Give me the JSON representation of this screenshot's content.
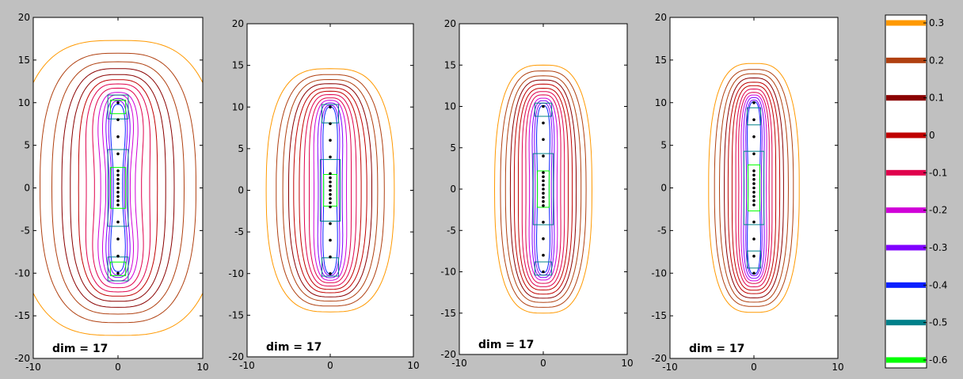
{
  "window": {
    "background": "#c0c0c0"
  },
  "chart_data": [
    {
      "type": "contour",
      "annotation": "dim = 17",
      "xlim": [
        -10,
        10
      ],
      "ylim": [
        -20,
        20
      ],
      "xticks": [
        -10,
        0,
        10
      ],
      "yticks": [
        -20,
        -15,
        -10,
        -5,
        0,
        5,
        10,
        15,
        20
      ],
      "point_sources_y": [
        -10,
        -8,
        -6,
        -4,
        -2,
        -1.5,
        -1,
        -0.5,
        0,
        0.5,
        1,
        1.5,
        2,
        4,
        6,
        8,
        10
      ],
      "levels": [
        0.3,
        0.2,
        0.1,
        0,
        -0.1,
        -0.2,
        -0.3,
        -0.4,
        -0.5,
        -0.6
      ],
      "contour_half_widths": [
        12,
        9.2,
        7.8,
        6.7,
        5.8,
        5.0,
        4.4,
        3.7,
        3.0,
        2.4,
        1.9,
        1.5,
        1.2
      ],
      "contour_half_heights": [
        17.3,
        15.8,
        14.8,
        14.0,
        13.3,
        12.7,
        12.2,
        11.7,
        11.2,
        10.9,
        10.5,
        10.2,
        9.8
      ],
      "contour_waists": [
        1.0,
        1.0,
        1.0,
        0.99,
        0.97,
        0.93,
        0.85,
        0.75,
        0.68,
        0.6,
        0.55,
        0.5,
        0.45
      ],
      "inner_boxes": [
        {
          "level": -0.5,
          "center_y": 0,
          "half_w": 1.2,
          "half_h": 4.5
        },
        {
          "level": -0.6,
          "center_y": 0,
          "half_w": 0.9,
          "half_h": 2.4
        },
        {
          "level": -0.5,
          "center_y": 9.5,
          "half_w": 1.2,
          "half_h": 1.4
        },
        {
          "level": -0.6,
          "center_y": 9.5,
          "half_w": 0.9,
          "half_h": 0.8
        },
        {
          "level": -0.5,
          "center_y": -9.5,
          "half_w": 1.2,
          "half_h": 1.4
        },
        {
          "level": -0.6,
          "center_y": -9.5,
          "half_w": 0.9,
          "half_h": 0.8
        }
      ]
    },
    {
      "type": "contour",
      "annotation": "dim = 17",
      "xlim": [
        -10,
        10
      ],
      "ylim": [
        -20,
        20
      ],
      "xticks": [
        -10,
        0,
        10
      ],
      "yticks": [
        -20,
        -15,
        -10,
        -5,
        0,
        5,
        10,
        15,
        20
      ],
      "point_sources_y": [
        -10,
        -8,
        -6,
        -4,
        -2,
        -1.5,
        -1,
        -0.5,
        0,
        0.5,
        1,
        1.5,
        2,
        4,
        6,
        8,
        10
      ],
      "levels": [
        0.3,
        0.2,
        0.1,
        0,
        -0.1,
        -0.2,
        -0.3,
        -0.4,
        -0.5,
        -0.6
      ],
      "contour_half_widths": [
        7.7,
        6.5,
        5.7,
        5.0,
        4.4,
        3.8,
        3.3,
        2.8,
        2.3,
        1.8,
        1.4,
        1.1
      ],
      "contour_half_heights": [
        14.6,
        13.9,
        13.3,
        12.8,
        12.3,
        11.9,
        11.5,
        11.1,
        10.8,
        10.5,
        10.2,
        10.0
      ],
      "contour_waists": [
        1.0,
        1.0,
        1.0,
        1.0,
        1.0,
        0.98,
        0.95,
        0.9,
        0.85,
        0.8,
        0.75,
        0.72
      ],
      "inner_boxes": [
        {
          "level": -0.5,
          "center_y": 0,
          "half_w": 1.2,
          "half_h": 3.7
        },
        {
          "level": -0.6,
          "center_y": 0,
          "half_w": 0.8,
          "half_h": 1.9
        },
        {
          "level": -0.5,
          "center_y": 9.2,
          "half_w": 1.0,
          "half_h": 1.1
        },
        {
          "level": -0.5,
          "center_y": -9.2,
          "half_w": 1.0,
          "half_h": 1.1
        }
      ]
    },
    {
      "type": "contour",
      "annotation": "dim = 17",
      "xlim": [
        -10,
        10
      ],
      "ylim": [
        -20,
        20
      ],
      "xticks": [
        -10,
        0,
        10
      ],
      "yticks": [
        -20,
        -15,
        -10,
        -5,
        0,
        5,
        10,
        15,
        20
      ],
      "point_sources_y": [
        -10,
        -8,
        -6,
        -4,
        -2,
        -1.5,
        -1,
        -0.5,
        0,
        0.5,
        1,
        1.5,
        2,
        4,
        6,
        8,
        10
      ],
      "levels": [
        0.3,
        0.2,
        0.1,
        0,
        -0.1,
        -0.2,
        -0.3,
        -0.4,
        -0.5,
        -0.6
      ],
      "contour_half_widths": [
        5.8,
        5.1,
        4.5,
        4.0,
        3.6,
        3.2,
        2.8,
        2.4,
        2.0,
        1.6,
        1.3,
        1.0
      ],
      "contour_half_heights": [
        15.0,
        14.3,
        13.7,
        13.2,
        12.7,
        12.2,
        11.8,
        11.4,
        11.0,
        10.7,
        10.4,
        10.1
      ],
      "contour_waists": [
        1.0,
        1.0,
        1.0,
        0.98,
        0.96,
        0.93,
        0.9,
        0.86,
        0.82,
        0.78,
        0.74,
        0.7
      ],
      "inner_boxes": [
        {
          "level": -0.5,
          "center_y": 0,
          "half_w": 1.2,
          "half_h": 4.3
        },
        {
          "level": -0.6,
          "center_y": 0,
          "half_w": 0.7,
          "half_h": 2.2
        },
        {
          "level": -0.5,
          "center_y": 9.6,
          "half_w": 1.0,
          "half_h": 0.8
        },
        {
          "level": -0.5,
          "center_y": -9.6,
          "half_w": 1.0,
          "half_h": 0.8
        }
      ]
    },
    {
      "type": "contour",
      "annotation": "dim = 17",
      "xlim": [
        -10,
        10
      ],
      "ylim": [
        -20,
        20
      ],
      "xticks": [
        -10,
        0,
        10
      ],
      "yticks": [
        -20,
        -15,
        -10,
        -5,
        0,
        5,
        10,
        15,
        20
      ],
      "point_sources_y": [
        -10,
        -8,
        -6,
        -4,
        -2,
        -1.5,
        -1,
        -0.5,
        0,
        0.5,
        1,
        1.5,
        2,
        4,
        6,
        8,
        10
      ],
      "levels": [
        0.3,
        0.2,
        0.1,
        0,
        -0.1,
        -0.2,
        -0.3,
        -0.4,
        -0.5,
        -0.6
      ],
      "contour_half_widths": [
        5.4,
        4.7,
        4.1,
        3.6,
        3.2,
        2.8,
        2.4,
        2.1,
        1.8,
        1.5,
        1.2,
        1.0
      ],
      "contour_half_heights": [
        14.6,
        13.9,
        13.4,
        12.9,
        12.4,
        12.0,
        11.6,
        11.2,
        10.9,
        10.6,
        10.3,
        10.1
      ],
      "contour_waists": [
        1.0,
        1.0,
        1.0,
        0.98,
        0.96,
        0.93,
        0.9,
        0.86,
        0.82,
        0.78,
        0.74,
        0.7
      ],
      "inner_boxes": [
        {
          "level": -0.5,
          "center_y": 0,
          "half_w": 1.2,
          "half_h": 4.3
        },
        {
          "level": -0.6,
          "center_y": 0,
          "half_w": 0.7,
          "half_h": 2.7
        },
        {
          "level": -0.5,
          "center_y": 8.4,
          "half_w": 0.8,
          "half_h": 1.0
        },
        {
          "level": -0.5,
          "center_y": -8.4,
          "half_w": 0.8,
          "half_h": 1.0
        }
      ]
    }
  ],
  "colorbar": {
    "levels": [
      0.3,
      0.2,
      0.1,
      0,
      -0.1,
      -0.2,
      -0.3,
      -0.4,
      -0.5,
      -0.6
    ],
    "labels": [
      "0.3",
      "0.2",
      "0.1",
      "0",
      "-0.1",
      "-0.2",
      "-0.3",
      "-0.4",
      "-0.5",
      "-0.6"
    ],
    "colors": [
      "#ff9900",
      "#b04010",
      "#8a0000",
      "#c00000",
      "#e0004c",
      "#d000d8",
      "#8000ff",
      "#0a20ff",
      "#00808a",
      "#00ff00"
    ]
  }
}
